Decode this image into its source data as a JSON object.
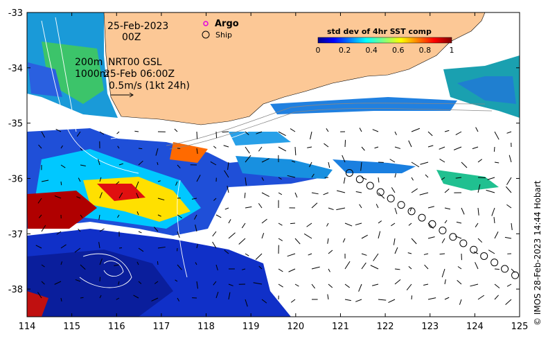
{
  "map": {
    "date": "25-Feb-2023",
    "time": "00Z",
    "depth_line1": "200m",
    "depth_line2": "1000m",
    "model_label": "NRT00 GSL",
    "model_time": "25-Feb 06:00Z",
    "vector_scale": "0.5m/s (1kt 24h)",
    "legend": {
      "argo": "Argo",
      "ship": "Ship",
      "argo_color": "#e000e0"
    },
    "colorbar": {
      "title": "std dev of 4hr SST comp",
      "ticks": [
        "0",
        "0.2",
        "0.4",
        "0.6",
        "0.8",
        "1"
      ]
    },
    "axes": {
      "lon_ticks": [
        "114",
        "115",
        "116",
        "117",
        "118",
        "119",
        "120",
        "121",
        "122",
        "123",
        "124",
        "125"
      ],
      "lat_ticks": [
        "-33",
        "-34",
        "-35",
        "-36",
        "-37",
        "-38"
      ],
      "lon_range": [
        114,
        125
      ],
      "lat_range": [
        -38.5,
        -33
      ]
    },
    "credit": "© IMOS 28-Feb-2023 14:44 Hobart",
    "colors": {
      "land": "#fcc896",
      "ocean_background": "#ffffff"
    }
  }
}
